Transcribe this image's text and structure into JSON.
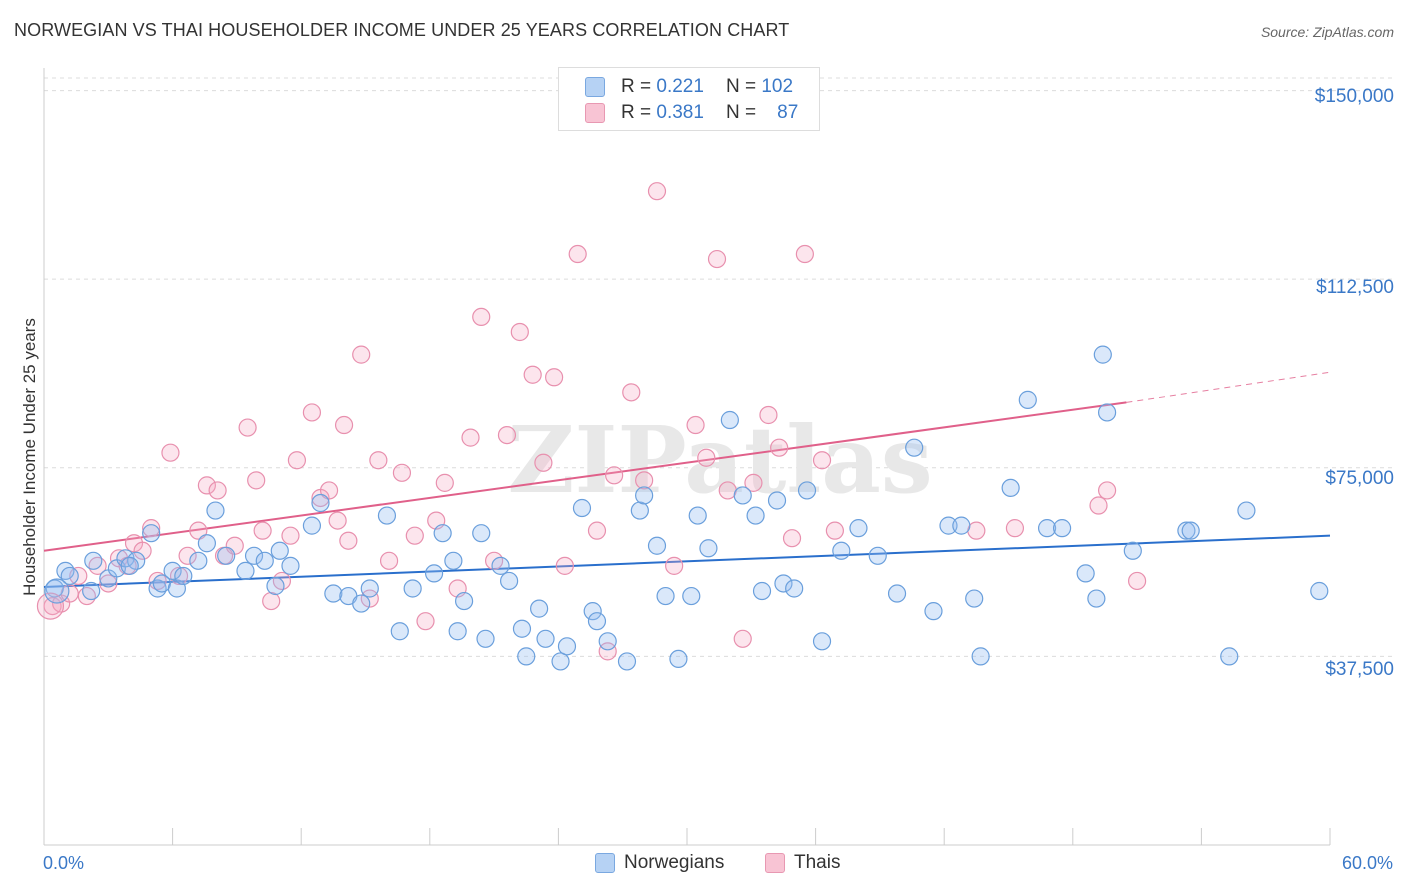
{
  "title": "NORWEGIAN VS THAI HOUSEHOLDER INCOME UNDER 25 YEARS CORRELATION CHART",
  "source": "Source: ZipAtlas.com",
  "watermark": "ZIPatlas",
  "legend": {
    "rows": [
      {
        "r_label": "R =",
        "r_value": "0.221",
        "n_label": "N =",
        "n_value": "102",
        "color": "#a8c8f0"
      },
      {
        "r_label": "R =",
        "r_value": "0.381",
        "n_label": "N =",
        "n_value": "87",
        "color": "#f5b8cc"
      }
    ],
    "bottom": [
      {
        "label": "Norwegians",
        "color": "#a8c8f0"
      },
      {
        "label": "Thais",
        "color": "#f5b8cc"
      }
    ]
  },
  "colors": {
    "norwegian_fill": "rgba(150,190,240,0.35)",
    "norwegian_stroke": "#6a9fdc",
    "norwegian_line": "#2a6fcc",
    "thai_fill": "rgba(245,170,195,0.30)",
    "thai_stroke": "#e890ae",
    "thai_line": "#e0608a",
    "axis_text": "#3a78c7"
  },
  "chart_data": {
    "type": "scatter",
    "title": "NORWEGIAN VS THAI HOUSEHOLDER INCOME UNDER 25 YEARS CORRELATION CHART",
    "xlabel": "",
    "ylabel": "Householder Income Under 25 years",
    "xlim": [
      0,
      60
    ],
    "ylim": [
      0,
      152500
    ],
    "x_tick_labels": [
      "0.0%",
      "60.0%"
    ],
    "y_ticks": [
      37500,
      75000,
      112500,
      150000
    ],
    "y_tick_labels": [
      "$37,500",
      "$75,000",
      "$112,500",
      "$150,000"
    ],
    "grid": true,
    "series": [
      {
        "name": "Norwegians",
        "r": 0.221,
        "n": 102,
        "trend": {
          "x0": 0,
          "y0": 51300,
          "x1": 60,
          "y1": 61500
        },
        "points": [
          [
            0.5,
            51000
          ],
          [
            1.0,
            54500
          ],
          [
            1.2,
            53500
          ],
          [
            2.3,
            56500
          ],
          [
            2.2,
            50500
          ],
          [
            3.0,
            53000
          ],
          [
            3.4,
            55000
          ],
          [
            3.8,
            57000
          ],
          [
            4.3,
            56500
          ],
          [
            4.0,
            55500
          ],
          [
            5.0,
            62000
          ],
          [
            5.3,
            51000
          ],
          [
            5.5,
            52000
          ],
          [
            6.0,
            54500
          ],
          [
            6.2,
            51000
          ],
          [
            6.5,
            53500
          ],
          [
            7.2,
            56500
          ],
          [
            7.6,
            60000
          ],
          [
            8.0,
            66500
          ],
          [
            8.5,
            57500
          ],
          [
            9.4,
            54500
          ],
          [
            9.8,
            57500
          ],
          [
            10.3,
            56500
          ],
          [
            11.0,
            58500
          ],
          [
            10.8,
            51500
          ],
          [
            11.5,
            55500
          ],
          [
            12.5,
            63500
          ],
          [
            12.9,
            68000
          ],
          [
            13.5,
            50000
          ],
          [
            14.2,
            49500
          ],
          [
            14.8,
            48000
          ],
          [
            15.2,
            51000
          ],
          [
            16.0,
            65500
          ],
          [
            16.6,
            42500
          ],
          [
            17.2,
            51000
          ],
          [
            18.2,
            54000
          ],
          [
            18.6,
            62000
          ],
          [
            19.1,
            56500
          ],
          [
            19.3,
            42500
          ],
          [
            19.6,
            48500
          ],
          [
            20.4,
            62000
          ],
          [
            20.6,
            41000
          ],
          [
            21.3,
            55500
          ],
          [
            21.7,
            52500
          ],
          [
            22.3,
            43000
          ],
          [
            22.5,
            37500
          ],
          [
            23.1,
            47000
          ],
          [
            23.4,
            41000
          ],
          [
            24.1,
            36500
          ],
          [
            24.4,
            39500
          ],
          [
            25.1,
            67000
          ],
          [
            25.6,
            46500
          ],
          [
            25.8,
            44500
          ],
          [
            26.3,
            40500
          ],
          [
            27.2,
            36500
          ],
          [
            27.8,
            66500
          ],
          [
            28.0,
            69500
          ],
          [
            28.6,
            59500
          ],
          [
            29.0,
            49500
          ],
          [
            29.6,
            37000
          ],
          [
            30.2,
            49500
          ],
          [
            30.5,
            65500
          ],
          [
            31.0,
            59000
          ],
          [
            32.0,
            84500
          ],
          [
            32.6,
            69500
          ],
          [
            33.2,
            65500
          ],
          [
            33.5,
            50500
          ],
          [
            34.2,
            68500
          ],
          [
            34.5,
            52000
          ],
          [
            35.0,
            51000
          ],
          [
            35.6,
            70500
          ],
          [
            36.3,
            40500
          ],
          [
            37.2,
            58500
          ],
          [
            38.0,
            63000
          ],
          [
            38.9,
            57500
          ],
          [
            39.8,
            50000
          ],
          [
            40.6,
            79000
          ],
          [
            41.5,
            46500
          ],
          [
            42.2,
            63500
          ],
          [
            42.8,
            63500
          ],
          [
            43.4,
            49000
          ],
          [
            43.7,
            37500
          ],
          [
            45.1,
            71000
          ],
          [
            45.9,
            88500
          ],
          [
            46.8,
            63000
          ],
          [
            47.5,
            63000
          ],
          [
            48.6,
            54000
          ],
          [
            49.1,
            49000
          ],
          [
            49.4,
            97500
          ],
          [
            49.6,
            86000
          ],
          [
            50.8,
            58500
          ],
          [
            53.3,
            62500
          ],
          [
            53.5,
            62500
          ],
          [
            55.3,
            37500
          ],
          [
            56.1,
            66500
          ],
          [
            59.5,
            50500
          ]
        ]
      },
      {
        "name": "Thais",
        "r": 0.381,
        "n": 87,
        "trend": {
          "x0": 0,
          "y0": 58500,
          "x1": 50.5,
          "y1": 88000
        },
        "trend_ext": {
          "x0": 50.5,
          "y0": 88000,
          "x1": 60,
          "y1": 94000
        },
        "points": [
          [
            0.4,
            47500
          ],
          [
            0.8,
            48000
          ],
          [
            1.2,
            50000
          ],
          [
            1.6,
            53500
          ],
          [
            2.0,
            49500
          ],
          [
            2.5,
            55500
          ],
          [
            3.0,
            52000
          ],
          [
            3.5,
            57000
          ],
          [
            3.9,
            55500
          ],
          [
            4.2,
            60000
          ],
          [
            4.6,
            58500
          ],
          [
            5.0,
            63000
          ],
          [
            5.3,
            52500
          ],
          [
            5.9,
            78000
          ],
          [
            6.3,
            53500
          ],
          [
            6.7,
            57500
          ],
          [
            7.2,
            62500
          ],
          [
            7.6,
            71500
          ],
          [
            8.1,
            70500
          ],
          [
            8.4,
            57500
          ],
          [
            8.9,
            59500
          ],
          [
            9.5,
            83000
          ],
          [
            9.9,
            72500
          ],
          [
            10.2,
            62500
          ],
          [
            10.6,
            48500
          ],
          [
            11.1,
            52500
          ],
          [
            11.5,
            61500
          ],
          [
            11.8,
            76500
          ],
          [
            12.5,
            86000
          ],
          [
            12.9,
            69000
          ],
          [
            13.3,
            70500
          ],
          [
            13.7,
            64500
          ],
          [
            14.0,
            83500
          ],
          [
            14.2,
            60500
          ],
          [
            14.8,
            97500
          ],
          [
            15.2,
            49000
          ],
          [
            15.6,
            76500
          ],
          [
            16.1,
            56500
          ],
          [
            16.7,
            74000
          ],
          [
            17.3,
            61500
          ],
          [
            17.8,
            44500
          ],
          [
            18.3,
            64500
          ],
          [
            18.7,
            72000
          ],
          [
            19.3,
            51000
          ],
          [
            19.9,
            81000
          ],
          [
            20.4,
            105000
          ],
          [
            21.0,
            56500
          ],
          [
            21.6,
            81500
          ],
          [
            22.2,
            102000
          ],
          [
            22.8,
            93500
          ],
          [
            23.3,
            76000
          ],
          [
            23.8,
            93000
          ],
          [
            24.3,
            55500
          ],
          [
            24.9,
            117500
          ],
          [
            25.8,
            62500
          ],
          [
            26.3,
            38500
          ],
          [
            26.6,
            73500
          ],
          [
            27.4,
            90000
          ],
          [
            28.0,
            72500
          ],
          [
            28.6,
            130000
          ],
          [
            29.4,
            55500
          ],
          [
            30.4,
            83500
          ],
          [
            30.9,
            77000
          ],
          [
            31.4,
            116500
          ],
          [
            31.9,
            70500
          ],
          [
            32.6,
            41000
          ],
          [
            33.1,
            72000
          ],
          [
            33.8,
            85500
          ],
          [
            34.3,
            79000
          ],
          [
            34.9,
            61000
          ],
          [
            35.5,
            117500
          ],
          [
            36.3,
            76500
          ],
          [
            36.9,
            62500
          ],
          [
            43.5,
            62500
          ],
          [
            45.3,
            63000
          ],
          [
            49.2,
            67500
          ],
          [
            49.6,
            70500
          ],
          [
            51.0,
            52500
          ]
        ]
      }
    ]
  }
}
